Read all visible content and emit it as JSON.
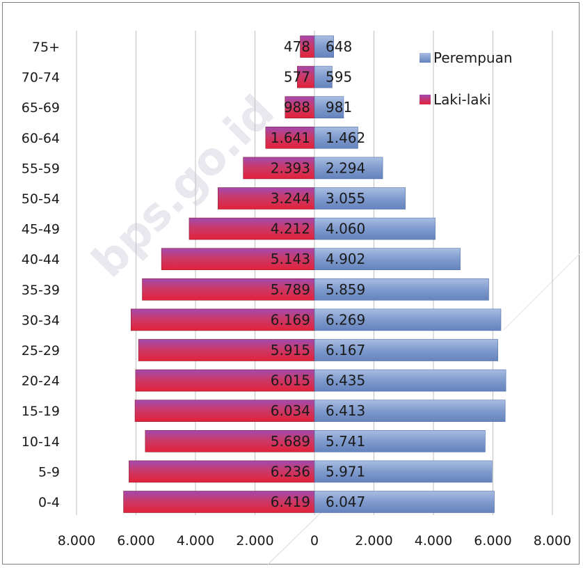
{
  "chart_data": {
    "type": "bar",
    "orientation": "horizontal",
    "layout": "population-pyramid",
    "categories": [
      "0-4",
      "5-9",
      "10-14",
      "15-19",
      "20-24",
      "25-29",
      "30-34",
      "35-39",
      "40-44",
      "45-49",
      "50-54",
      "55-59",
      "60-64",
      "65-69",
      "70-74",
      "75+"
    ],
    "series": [
      {
        "name": "Laki-laki",
        "side": "left",
        "color": "#d8243f",
        "values": [
          6419,
          6236,
          5689,
          6034,
          6015,
          5915,
          6169,
          5789,
          5143,
          4212,
          3244,
          2393,
          1641,
          988,
          577,
          478
        ],
        "labels": [
          "6.419",
          "6.236",
          "5.689",
          "6.034",
          "6.015",
          "5.915",
          "6.169",
          "5.789",
          "5.143",
          "4.212",
          "3.244",
          "2.393",
          "1.641",
          "988",
          "577",
          "478"
        ]
      },
      {
        "name": "Perempuan",
        "side": "right",
        "color": "#7b96c8",
        "values": [
          6047,
          5971,
          5741,
          6413,
          6435,
          6167,
          6269,
          5859,
          4902,
          4060,
          3055,
          2294,
          1462,
          981,
          595,
          648
        ],
        "labels": [
          "6.047",
          "5.971",
          "5.741",
          "6.413",
          "6.435",
          "6.167",
          "6.269",
          "5.859",
          "4.902",
          "4.060",
          "3.055",
          "2.294",
          "1.462",
          "981",
          "595",
          "648"
        ]
      }
    ],
    "xlim": [
      -8000,
      8000
    ],
    "x_ticks": [
      -8000,
      -6000,
      -4000,
      -2000,
      0,
      2000,
      4000,
      6000,
      8000
    ],
    "x_tick_labels": [
      "8.000",
      "6.000",
      "4.000",
      "2.000",
      "0",
      "2.000",
      "4.000",
      "6.000",
      "8.000"
    ],
    "grid": "vertical",
    "legend_position": "top-right",
    "title": "",
    "xlabel": "",
    "ylabel": ""
  },
  "watermark": "bps.go.id"
}
